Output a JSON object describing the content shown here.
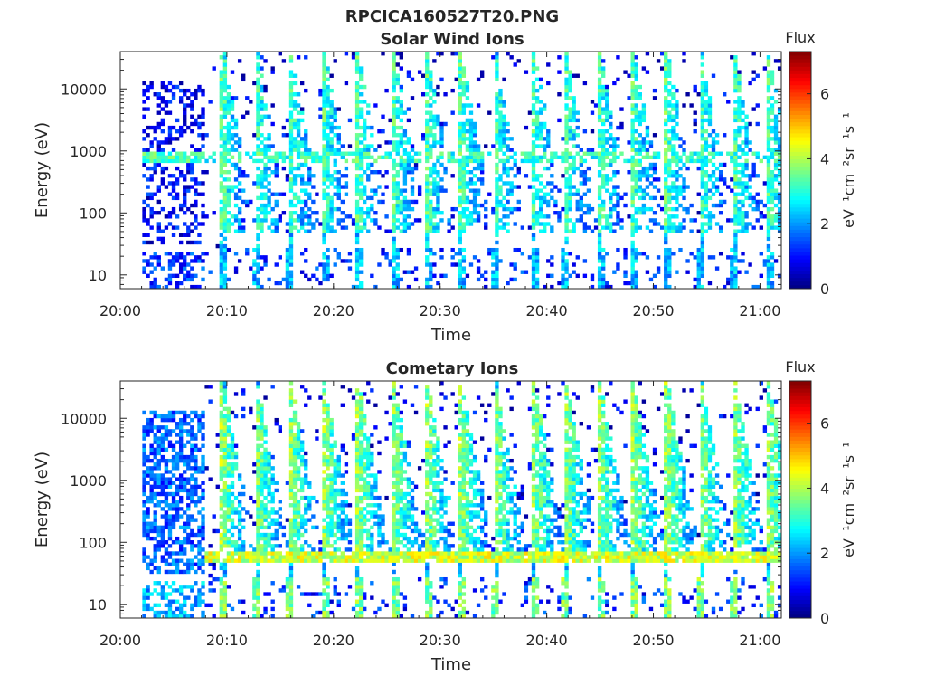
{
  "figure": {
    "title": "RPCICA160527T20.PNG"
  },
  "colors": {
    "axis": "#262626",
    "background": "#ffffff"
  },
  "colormap": [
    "#00007f",
    "#0000ff",
    "#007fff",
    "#00ffff",
    "#7fff7f",
    "#ffff00",
    "#ff7f00",
    "#ff0000",
    "#7f0000"
  ],
  "chart_data": [
    {
      "type": "heatmap",
      "title": "Solar Wind Ions",
      "xlabel": "Time",
      "ylabel": "Energy (eV)",
      "x_ticks": [
        "20:00",
        "20:10",
        "20:20",
        "20:30",
        "20:40",
        "20:50",
        "21:00"
      ],
      "x_range": [
        "20:00",
        "21:02"
      ],
      "y_scale": "log",
      "y_range": [
        6,
        40000
      ],
      "y_ticks": [
        10,
        100,
        1000,
        10000
      ],
      "y_tick_labels": [
        "10",
        "100",
        "1000",
        "10000"
      ],
      "colorbar": {
        "title": "Flux",
        "label": "eV⁻¹cm⁻²sr⁻¹s⁻¹",
        "range": [
          0,
          7.3
        ],
        "ticks": [
          "0",
          "2",
          "4",
          "6"
        ]
      },
      "features": {
        "main_band_energy_eV": 800,
        "low_energy_cutoff_eV": 50,
        "burst_times": [
          "20:09:40",
          "20:12:50",
          "20:16:00",
          "20:19:10",
          "20:22:20",
          "20:25:40",
          "20:28:50",
          "20:32:00",
          "20:35:10",
          "20:38:50",
          "20:41:50",
          "20:45:00",
          "20:48:10",
          "20:51:20",
          "20:54:30",
          "20:57:40",
          "21:00:50"
        ]
      }
    },
    {
      "type": "heatmap",
      "title": "Cometary Ions",
      "xlabel": "Time",
      "ylabel": "Energy (eV)",
      "x_ticks": [
        "20:00",
        "20:10",
        "20:20",
        "20:30",
        "20:40",
        "20:50",
        "21:00"
      ],
      "x_range": [
        "20:00",
        "21:02"
      ],
      "y_scale": "log",
      "y_range": [
        6,
        40000
      ],
      "y_ticks": [
        10,
        100,
        1000,
        10000
      ],
      "y_tick_labels": [
        "10",
        "100",
        "1000",
        "10000"
      ],
      "colorbar": {
        "title": "Flux",
        "label": "eV⁻¹cm⁻²sr⁻¹s⁻¹",
        "range": [
          0,
          7.3
        ],
        "ticks": [
          "0",
          "2",
          "4",
          "6"
        ]
      },
      "features": {
        "main_band_energy_eV": 60,
        "low_energy_cutoff_eV": 50,
        "burst_times": [
          "20:09:40",
          "20:12:50",
          "20:16:00",
          "20:19:10",
          "20:22:20",
          "20:25:40",
          "20:28:50",
          "20:32:00",
          "20:35:10",
          "20:38:50",
          "20:41:50",
          "20:45:00",
          "20:48:10",
          "20:51:20",
          "20:54:30",
          "20:57:40",
          "21:00:50"
        ]
      }
    }
  ]
}
